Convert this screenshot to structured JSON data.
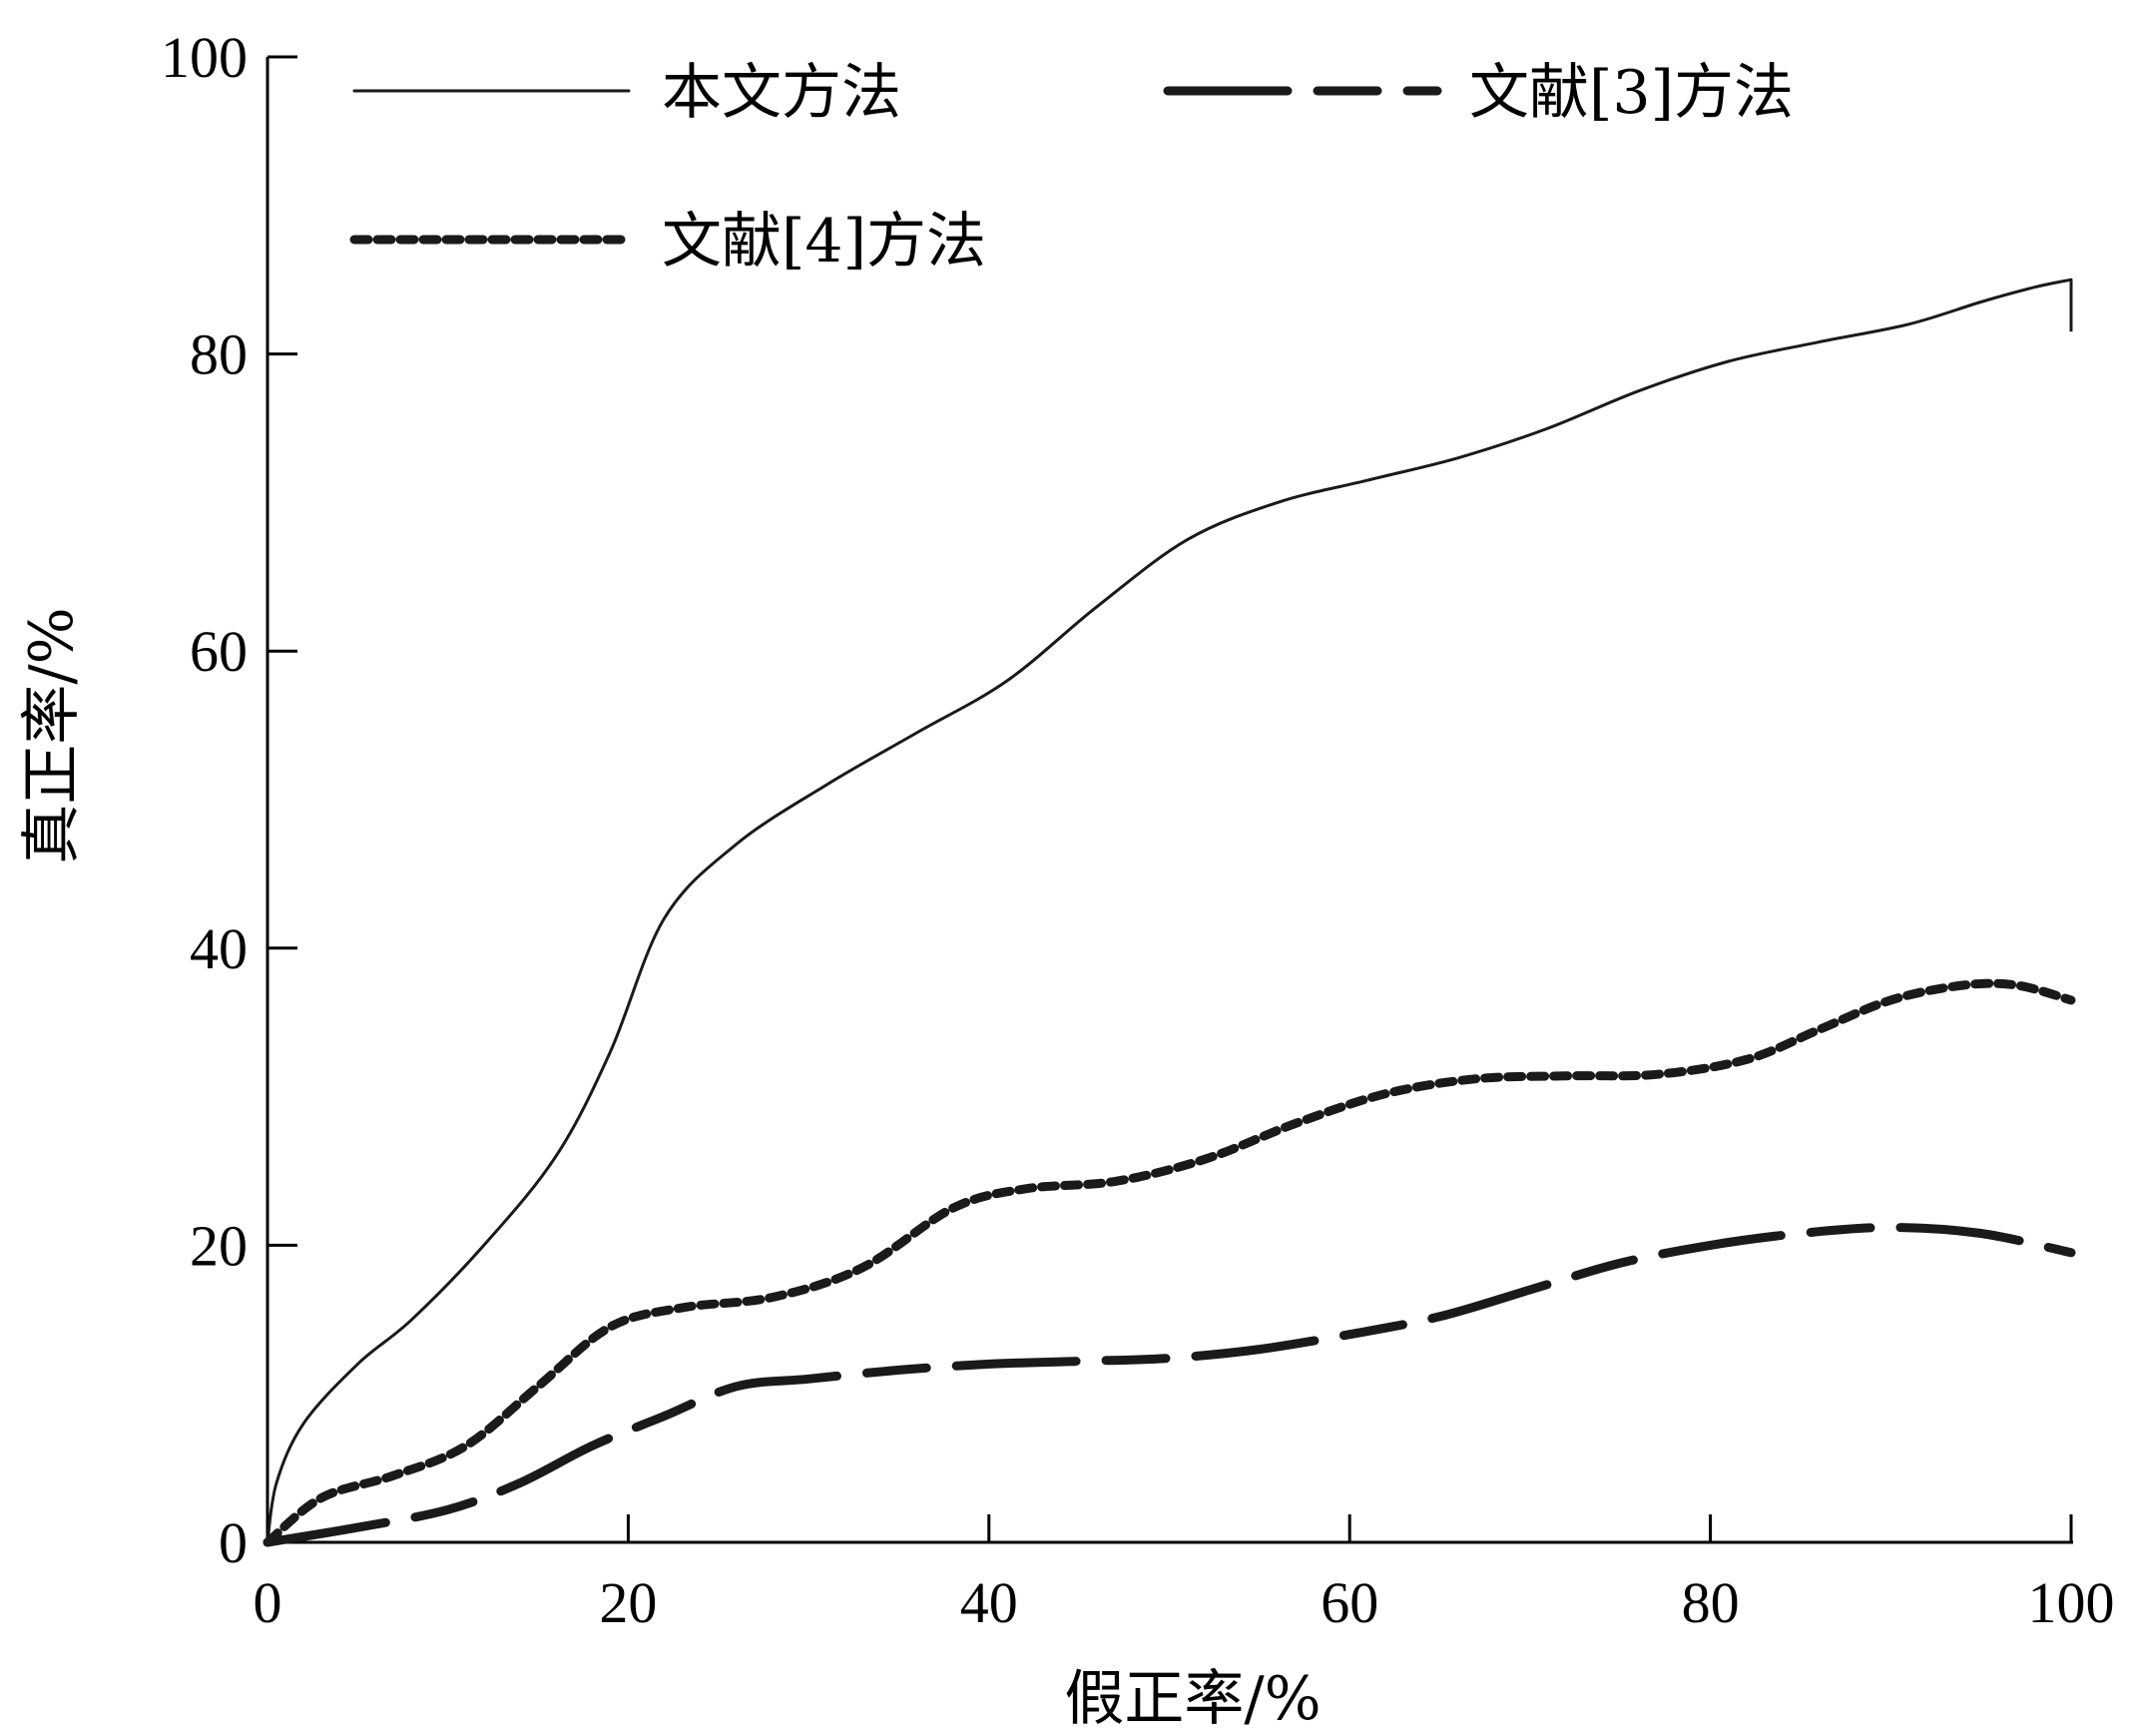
{
  "chart_data": {
    "type": "line",
    "xlabel": "假正率/%",
    "ylabel": "真正率/%",
    "xlim": [
      0,
      100
    ],
    "ylim": [
      0,
      100
    ],
    "x_ticks": [
      "0",
      "20",
      "40",
      "60",
      "80",
      "100"
    ],
    "y_ticks": [
      "0",
      "20",
      "40",
      "60",
      "80",
      "100"
    ],
    "grid": false,
    "legend_position": "top-left",
    "series": [
      {
        "name": "本文方法",
        "style": "solid-thin",
        "x": [
          0,
          0.5,
          2,
          5,
          8,
          12,
          16,
          19,
          22,
          26,
          31,
          36,
          41,
          46,
          51,
          56,
          61,
          66,
          71,
          76,
          81,
          86,
          91,
          95,
          98,
          100
        ],
        "y": [
          0,
          4,
          8,
          12,
          15,
          20,
          26,
          33,
          42,
          47,
          51,
          54.5,
          58,
          63,
          67.5,
          70,
          71.5,
          73,
          75,
          77.5,
          79.5,
          80.8,
          82,
          83.5,
          84.5,
          85
        ]
      },
      {
        "name": "文献[3]方法",
        "style": "long-dash-thick",
        "x": [
          0,
          5,
          10,
          14,
          18,
          22,
          26,
          30,
          35,
          40,
          45,
          50,
          55,
          60,
          65,
          70,
          75,
          80,
          85,
          90,
          95,
          100
        ],
        "y": [
          0,
          1,
          2.2,
          4,
          6.5,
          8.5,
          10.5,
          11,
          11.6,
          12,
          12.2,
          12.4,
          13,
          14,
          15.2,
          17,
          18.8,
          20,
          20.8,
          21.2,
          20.8,
          19.5
        ]
      },
      {
        "name": "文献[4]方法",
        "style": "short-dash-thick",
        "x": [
          0,
          3,
          7,
          11,
          15,
          19,
          23,
          28,
          33,
          38,
          42,
          47,
          52,
          57,
          62,
          67,
          72,
          77,
          82,
          86,
          90,
          94,
          97,
          100
        ],
        "y": [
          0,
          3,
          4.5,
          6.5,
          10.5,
          14.5,
          15.8,
          16.5,
          18.5,
          22.5,
          23.8,
          24.3,
          25.8,
          28.2,
          30.2,
          31.2,
          31.4,
          31.5,
          32.5,
          34.5,
          36.5,
          37.5,
          37.5,
          36.5
        ]
      }
    ]
  }
}
